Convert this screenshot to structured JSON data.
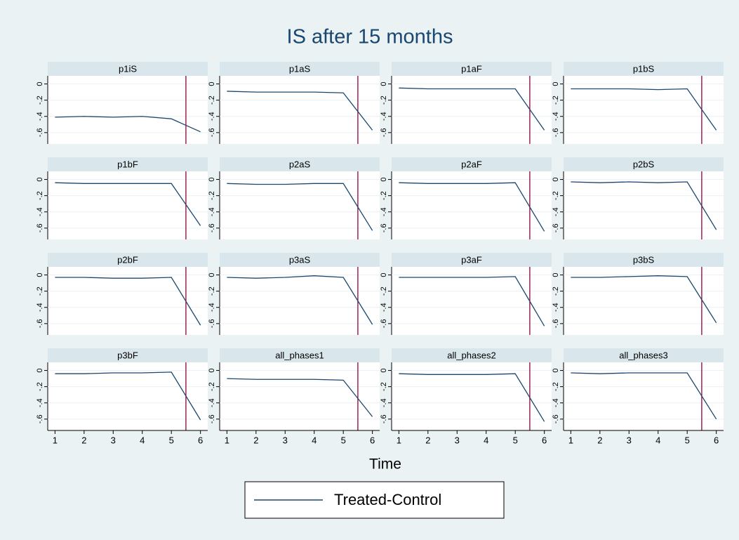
{
  "title": "IS after 15 months",
  "x_label": "Time",
  "legend": {
    "name": "Treated-Control",
    "color": "#1a476f"
  },
  "chart_data": [
    {
      "type": "line",
      "title": "p1iS",
      "x": [
        1,
        2,
        3,
        4,
        5,
        6
      ],
      "values": [
        -0.41,
        -0.4,
        -0.41,
        -0.4,
        -0.43,
        -0.59
      ],
      "color": "#1a476f",
      "xlim": [
        0.75,
        6.25
      ],
      "xticks": [
        1,
        2,
        3,
        4,
        5,
        6
      ],
      "ylim": [
        -0.74,
        0.1
      ],
      "yticks": [
        0,
        {
          "value": -0.2,
          "label": "-.2"
        },
        {
          "value": -0.4,
          "label": "-.4"
        },
        {
          "value": -0.6,
          "label": "-.6"
        }
      ],
      "grid": true,
      "xline": 5.5,
      "xline_color": "#90003b"
    },
    {
      "type": "line",
      "title": "p1aS",
      "x": [
        1,
        2,
        3,
        4,
        5,
        6
      ],
      "values": [
        -0.09,
        -0.1,
        -0.1,
        -0.1,
        -0.11,
        -0.57
      ],
      "color": "#1a476f",
      "xlim": [
        0.75,
        6.25
      ],
      "xticks": [
        1,
        2,
        3,
        4,
        5,
        6
      ],
      "ylim": [
        -0.74,
        0.1
      ],
      "yticks": [
        0,
        {
          "value": -0.2,
          "label": "-.2"
        },
        {
          "value": -0.4,
          "label": "-.4"
        },
        {
          "value": -0.6,
          "label": "-.6"
        }
      ],
      "grid": true,
      "xline": 5.5,
      "xline_color": "#90003b"
    },
    {
      "type": "line",
      "title": "p1aF",
      "x": [
        1,
        2,
        3,
        4,
        5,
        6
      ],
      "values": [
        -0.05,
        -0.06,
        -0.06,
        -0.06,
        -0.06,
        -0.57
      ],
      "color": "#1a476f",
      "xlim": [
        0.75,
        6.25
      ],
      "xticks": [
        1,
        2,
        3,
        4,
        5,
        6
      ],
      "ylim": [
        -0.74,
        0.1
      ],
      "yticks": [
        0,
        {
          "value": -0.2,
          "label": "-.2"
        },
        {
          "value": -0.4,
          "label": "-.4"
        },
        {
          "value": -0.6,
          "label": "-.6"
        }
      ],
      "grid": true,
      "xline": 5.5,
      "xline_color": "#90003b"
    },
    {
      "type": "line",
      "title": "p1bS",
      "x": [
        1,
        2,
        3,
        4,
        5,
        6
      ],
      "values": [
        -0.06,
        -0.06,
        -0.06,
        -0.07,
        -0.06,
        -0.57
      ],
      "color": "#1a476f",
      "xlim": [
        0.75,
        6.25
      ],
      "xticks": [
        1,
        2,
        3,
        4,
        5,
        6
      ],
      "ylim": [
        -0.74,
        0.1
      ],
      "yticks": [
        0,
        {
          "value": -0.2,
          "label": "-.2"
        },
        {
          "value": -0.4,
          "label": "-.4"
        },
        {
          "value": -0.6,
          "label": "-.6"
        }
      ],
      "grid": true,
      "xline": 5.5,
      "xline_color": "#90003b"
    },
    {
      "type": "line",
      "title": "p1bF",
      "x": [
        1,
        2,
        3,
        4,
        5,
        6
      ],
      "values": [
        -0.04,
        -0.05,
        -0.05,
        -0.05,
        -0.05,
        -0.57
      ],
      "color": "#1a476f",
      "xlim": [
        0.75,
        6.25
      ],
      "xticks": [
        1,
        2,
        3,
        4,
        5,
        6
      ],
      "ylim": [
        -0.74,
        0.1
      ],
      "yticks": [
        0,
        {
          "value": -0.2,
          "label": "-.2"
        },
        {
          "value": -0.4,
          "label": "-.4"
        },
        {
          "value": -0.6,
          "label": "-.6"
        }
      ],
      "grid": true,
      "xline": 5.5,
      "xline_color": "#90003b"
    },
    {
      "type": "line",
      "title": "p2aS",
      "x": [
        1,
        2,
        3,
        4,
        5,
        6
      ],
      "values": [
        -0.05,
        -0.06,
        -0.06,
        -0.05,
        -0.05,
        -0.63
      ],
      "color": "#1a476f",
      "xlim": [
        0.75,
        6.25
      ],
      "xticks": [
        1,
        2,
        3,
        4,
        5,
        6
      ],
      "ylim": [
        -0.74,
        0.1
      ],
      "yticks": [
        0,
        {
          "value": -0.2,
          "label": "-.2"
        },
        {
          "value": -0.4,
          "label": "-.4"
        },
        {
          "value": -0.6,
          "label": "-.6"
        }
      ],
      "grid": true,
      "xline": 5.5,
      "xline_color": "#90003b"
    },
    {
      "type": "line",
      "title": "p2aF",
      "x": [
        1,
        2,
        3,
        4,
        5,
        6
      ],
      "values": [
        -0.04,
        -0.05,
        -0.05,
        -0.05,
        -0.04,
        -0.64
      ],
      "color": "#1a476f",
      "xlim": [
        0.75,
        6.25
      ],
      "xticks": [
        1,
        2,
        3,
        4,
        5,
        6
      ],
      "ylim": [
        -0.74,
        0.1
      ],
      "yticks": [
        0,
        {
          "value": -0.2,
          "label": "-.2"
        },
        {
          "value": -0.4,
          "label": "-.4"
        },
        {
          "value": -0.6,
          "label": "-.6"
        }
      ],
      "grid": true,
      "xline": 5.5,
      "xline_color": "#90003b"
    },
    {
      "type": "line",
      "title": "p2bS",
      "x": [
        1,
        2,
        3,
        4,
        5,
        6
      ],
      "values": [
        -0.03,
        -0.04,
        -0.03,
        -0.04,
        -0.03,
        -0.62
      ],
      "color": "#1a476f",
      "xlim": [
        0.75,
        6.25
      ],
      "xticks": [
        1,
        2,
        3,
        4,
        5,
        6
      ],
      "ylim": [
        -0.74,
        0.1
      ],
      "yticks": [
        0,
        {
          "value": -0.2,
          "label": "-.2"
        },
        {
          "value": -0.4,
          "label": "-.4"
        },
        {
          "value": -0.6,
          "label": "-.6"
        }
      ],
      "grid": true,
      "xline": 5.5,
      "xline_color": "#90003b"
    },
    {
      "type": "line",
      "title": "p2bF",
      "x": [
        1,
        2,
        3,
        4,
        5,
        6
      ],
      "values": [
        -0.03,
        -0.03,
        -0.04,
        -0.04,
        -0.03,
        -0.62
      ],
      "color": "#1a476f",
      "xlim": [
        0.75,
        6.25
      ],
      "xticks": [
        1,
        2,
        3,
        4,
        5,
        6
      ],
      "ylim": [
        -0.74,
        0.1
      ],
      "yticks": [
        0,
        {
          "value": -0.2,
          "label": "-.2"
        },
        {
          "value": -0.4,
          "label": "-.4"
        },
        {
          "value": -0.6,
          "label": "-.6"
        }
      ],
      "grid": true,
      "xline": 5.5,
      "xline_color": "#90003b"
    },
    {
      "type": "line",
      "title": "p3aS",
      "x": [
        1,
        2,
        3,
        4,
        5,
        6
      ],
      "values": [
        -0.03,
        -0.04,
        -0.03,
        -0.01,
        -0.03,
        -0.61
      ],
      "color": "#1a476f",
      "xlim": [
        0.75,
        6.25
      ],
      "xticks": [
        1,
        2,
        3,
        4,
        5,
        6
      ],
      "ylim": [
        -0.74,
        0.1
      ],
      "yticks": [
        0,
        {
          "value": -0.2,
          "label": "-.2"
        },
        {
          "value": -0.4,
          "label": "-.4"
        },
        {
          "value": -0.6,
          "label": "-.6"
        }
      ],
      "grid": true,
      "xline": 5.5,
      "xline_color": "#90003b"
    },
    {
      "type": "line",
      "title": "p3aF",
      "x": [
        1,
        2,
        3,
        4,
        5,
        6
      ],
      "values": [
        -0.03,
        -0.03,
        -0.03,
        -0.03,
        -0.02,
        -0.63
      ],
      "color": "#1a476f",
      "xlim": [
        0.75,
        6.25
      ],
      "xticks": [
        1,
        2,
        3,
        4,
        5,
        6
      ],
      "ylim": [
        -0.74,
        0.1
      ],
      "yticks": [
        0,
        {
          "value": -0.2,
          "label": "-.2"
        },
        {
          "value": -0.4,
          "label": "-.4"
        },
        {
          "value": -0.6,
          "label": "-.6"
        }
      ],
      "grid": true,
      "xline": 5.5,
      "xline_color": "#90003b"
    },
    {
      "type": "line",
      "title": "p3bS",
      "x": [
        1,
        2,
        3,
        4,
        5,
        6
      ],
      "values": [
        -0.03,
        -0.03,
        -0.02,
        -0.01,
        -0.02,
        -0.59
      ],
      "color": "#1a476f",
      "xlim": [
        0.75,
        6.25
      ],
      "xticks": [
        1,
        2,
        3,
        4,
        5,
        6
      ],
      "ylim": [
        -0.74,
        0.1
      ],
      "yticks": [
        0,
        {
          "value": -0.2,
          "label": "-.2"
        },
        {
          "value": -0.4,
          "label": "-.4"
        },
        {
          "value": -0.6,
          "label": "-.6"
        }
      ],
      "grid": true,
      "xline": 5.5,
      "xline_color": "#90003b"
    },
    {
      "type": "line",
      "title": "p3bF",
      "x": [
        1,
        2,
        3,
        4,
        5,
        6
      ],
      "values": [
        -0.04,
        -0.04,
        -0.03,
        -0.03,
        -0.02,
        -0.61
      ],
      "color": "#1a476f",
      "xlim": [
        0.75,
        6.25
      ],
      "xticks": [
        1,
        2,
        3,
        4,
        5,
        6
      ],
      "ylim": [
        -0.74,
        0.1
      ],
      "yticks": [
        0,
        {
          "value": -0.2,
          "label": "-.2"
        },
        {
          "value": -0.4,
          "label": "-.4"
        },
        {
          "value": -0.6,
          "label": "-.6"
        }
      ],
      "grid": true,
      "xline": 5.5,
      "xline_color": "#90003b"
    },
    {
      "type": "line",
      "title": "all_phases1",
      "x": [
        1,
        2,
        3,
        4,
        5,
        6
      ],
      "values": [
        -0.1,
        -0.11,
        -0.11,
        -0.11,
        -0.12,
        -0.57
      ],
      "color": "#1a476f",
      "xlim": [
        0.75,
        6.25
      ],
      "xticks": [
        1,
        2,
        3,
        4,
        5,
        6
      ],
      "ylim": [
        -0.74,
        0.1
      ],
      "yticks": [
        0,
        {
          "value": -0.2,
          "label": "-.2"
        },
        {
          "value": -0.4,
          "label": "-.4"
        },
        {
          "value": -0.6,
          "label": "-.6"
        }
      ],
      "grid": true,
      "xline": 5.5,
      "xline_color": "#90003b"
    },
    {
      "type": "line",
      "title": "all_phases2",
      "x": [
        1,
        2,
        3,
        4,
        5,
        6
      ],
      "values": [
        -0.04,
        -0.05,
        -0.05,
        -0.05,
        -0.04,
        -0.63
      ],
      "color": "#1a476f",
      "xlim": [
        0.75,
        6.25
      ],
      "xticks": [
        1,
        2,
        3,
        4,
        5,
        6
      ],
      "ylim": [
        -0.74,
        0.1
      ],
      "yticks": [
        0,
        {
          "value": -0.2,
          "label": "-.2"
        },
        {
          "value": -0.4,
          "label": "-.4"
        },
        {
          "value": -0.6,
          "label": "-.6"
        }
      ],
      "grid": true,
      "xline": 5.5,
      "xline_color": "#90003b"
    },
    {
      "type": "line",
      "title": "all_phases3",
      "x": [
        1,
        2,
        3,
        4,
        5,
        6
      ],
      "values": [
        -0.03,
        -0.04,
        -0.03,
        -0.03,
        -0.03,
        -0.6
      ],
      "color": "#1a476f",
      "xlim": [
        0.75,
        6.25
      ],
      "xticks": [
        1,
        2,
        3,
        4,
        5,
        6
      ],
      "ylim": [
        -0.74,
        0.1
      ],
      "yticks": [
        0,
        {
          "value": -0.2,
          "label": "-.2"
        },
        {
          "value": -0.4,
          "label": "-.4"
        },
        {
          "value": -0.6,
          "label": "-.6"
        }
      ],
      "grid": true,
      "xline": 5.5,
      "xline_color": "#90003b"
    }
  ]
}
